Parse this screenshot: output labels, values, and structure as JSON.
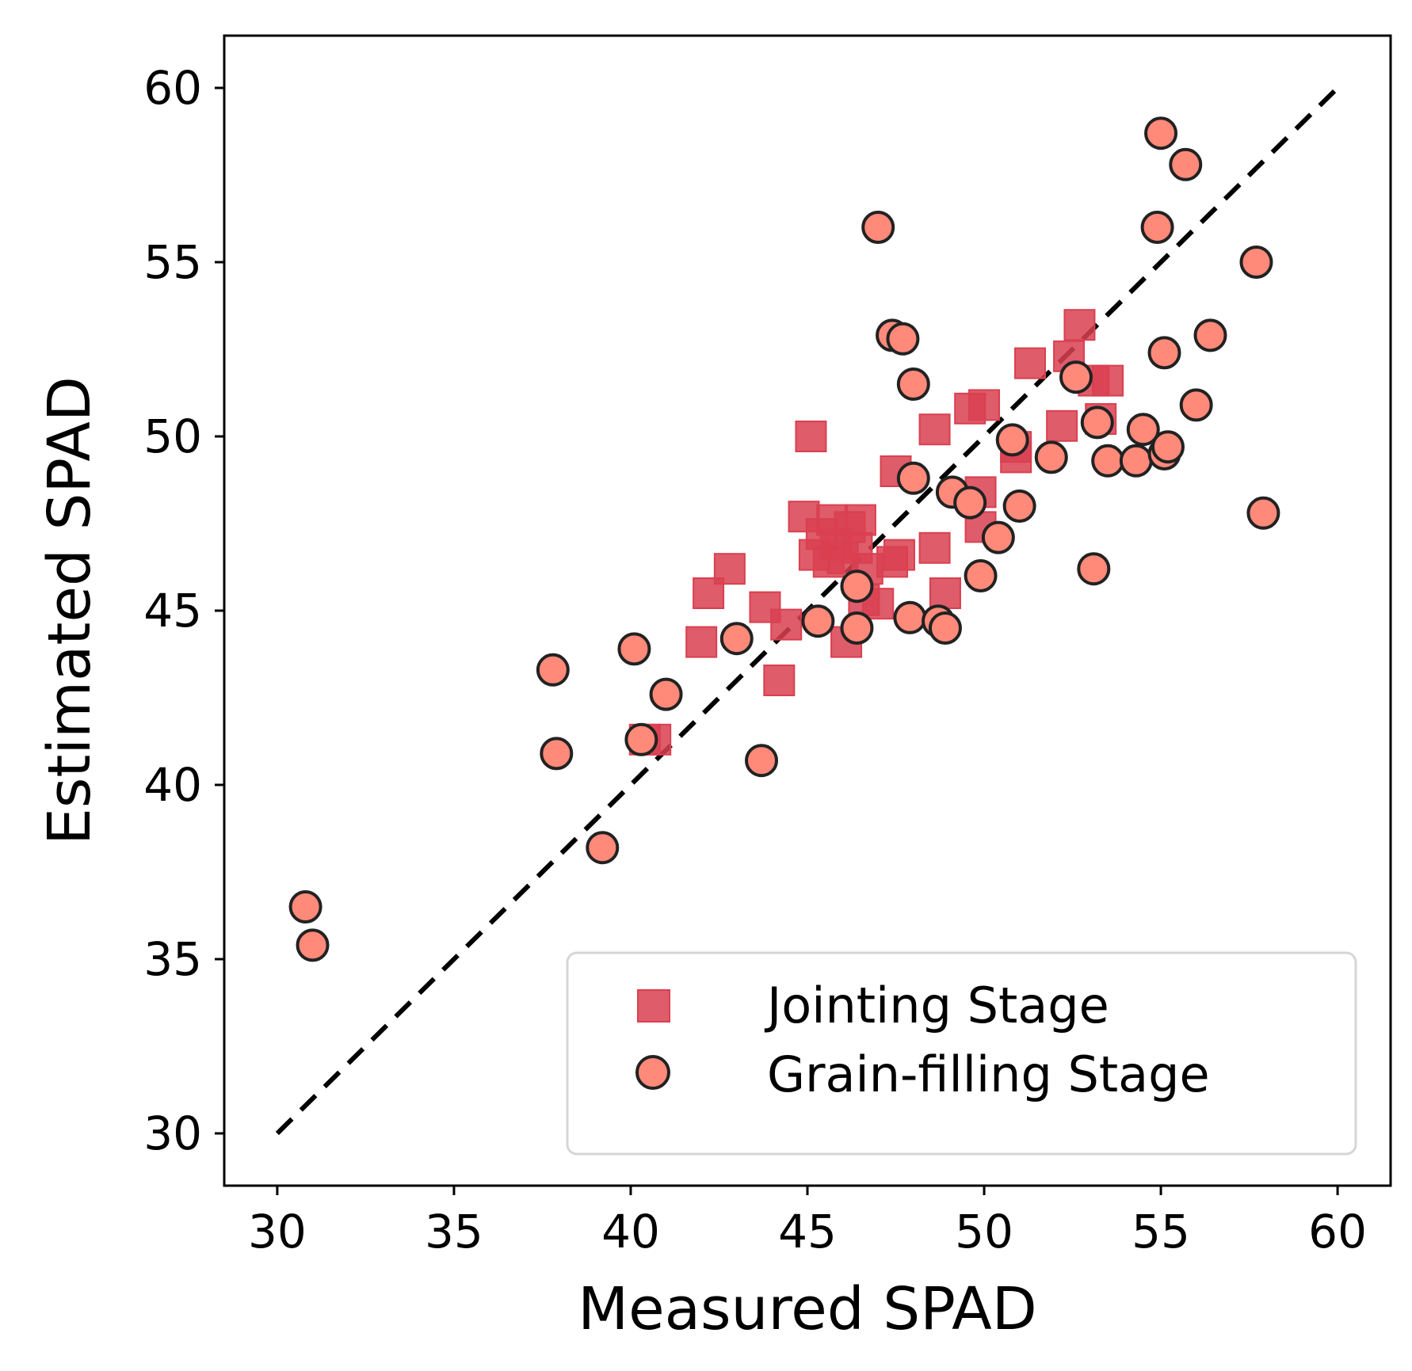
{
  "chart_data": {
    "type": "scatter",
    "title": "",
    "xlabel": "Measured SPAD",
    "ylabel": "Estimated SPAD",
    "xlim": [
      28.5,
      61.5
    ],
    "ylim": [
      28.5,
      61.5
    ],
    "xticks": [
      30,
      35,
      40,
      45,
      50,
      55,
      60
    ],
    "yticks": [
      30,
      35,
      40,
      45,
      50,
      55,
      60
    ],
    "grid": false,
    "legend_position": "bottom-right",
    "reference_line": {
      "style": "dashed",
      "color": "#000000",
      "from": [
        30,
        30
      ],
      "to": [
        60,
        60
      ]
    },
    "series": [
      {
        "name": "Jointing Stage",
        "marker": "square",
        "color": "#d94050",
        "points": [
          [
            40.4,
            41.3
          ],
          [
            40.7,
            41.3
          ],
          [
            42.0,
            44.1
          ],
          [
            42.2,
            45.5
          ],
          [
            42.8,
            46.2
          ],
          [
            43.8,
            45.1
          ],
          [
            44.4,
            44.6
          ],
          [
            44.2,
            43.0
          ],
          [
            44.9,
            47.7
          ],
          [
            45.1,
            50.0
          ],
          [
            45.2,
            46.6
          ],
          [
            45.4,
            47.2
          ],
          [
            45.6,
            46.4
          ],
          [
            45.7,
            47.6
          ],
          [
            45.8,
            46.9
          ],
          [
            46.0,
            46.5
          ],
          [
            46.1,
            44.1
          ],
          [
            46.2,
            47.4
          ],
          [
            46.4,
            46.8
          ],
          [
            46.5,
            47.6
          ],
          [
            46.6,
            45.3
          ],
          [
            46.7,
            46.2
          ],
          [
            47.0,
            45.2
          ],
          [
            47.4,
            46.4
          ],
          [
            47.5,
            49.0
          ],
          [
            47.6,
            46.6
          ],
          [
            48.6,
            50.2
          ],
          [
            48.6,
            46.8
          ],
          [
            48.9,
            45.5
          ],
          [
            49.6,
            50.8
          ],
          [
            49.9,
            48.4
          ],
          [
            49.9,
            47.4
          ],
          [
            50.0,
            50.9
          ],
          [
            50.9,
            49.7
          ],
          [
            50.9,
            49.4
          ],
          [
            51.3,
            52.1
          ],
          [
            52.2,
            50.3
          ],
          [
            52.4,
            52.3
          ],
          [
            52.7,
            53.2
          ],
          [
            53.1,
            51.6
          ],
          [
            53.3,
            50.5
          ],
          [
            53.5,
            51.6
          ]
        ]
      },
      {
        "name": "Grain-filling Stage",
        "marker": "circle",
        "color": "#ff8a7a",
        "points": [
          [
            30.8,
            36.5
          ],
          [
            31.0,
            35.4
          ],
          [
            37.8,
            43.3
          ],
          [
            37.9,
            40.9
          ],
          [
            39.2,
            38.2
          ],
          [
            40.1,
            43.9
          ],
          [
            40.3,
            41.3
          ],
          [
            41.0,
            42.6
          ],
          [
            43.0,
            44.2
          ],
          [
            43.7,
            40.7
          ],
          [
            45.3,
            44.7
          ],
          [
            46.4,
            44.5
          ],
          [
            46.4,
            45.7
          ],
          [
            47.0,
            56.0
          ],
          [
            47.4,
            52.9
          ],
          [
            47.7,
            52.8
          ],
          [
            47.9,
            44.8
          ],
          [
            48.0,
            51.5
          ],
          [
            48.0,
            48.8
          ],
          [
            48.7,
            44.7
          ],
          [
            48.9,
            44.5
          ],
          [
            49.1,
            48.4
          ],
          [
            49.6,
            48.1
          ],
          [
            49.9,
            46.0
          ],
          [
            50.4,
            47.1
          ],
          [
            50.8,
            49.9
          ],
          [
            51.0,
            48.0
          ],
          [
            51.9,
            49.4
          ],
          [
            52.6,
            51.7
          ],
          [
            53.1,
            46.2
          ],
          [
            53.2,
            50.4
          ],
          [
            53.5,
            49.3
          ],
          [
            54.3,
            49.3
          ],
          [
            54.5,
            50.2
          ],
          [
            54.9,
            56.0
          ],
          [
            55.0,
            58.7
          ],
          [
            55.1,
            52.4
          ],
          [
            55.1,
            49.5
          ],
          [
            55.2,
            49.7
          ],
          [
            55.7,
            57.8
          ],
          [
            56.0,
            50.9
          ],
          [
            56.4,
            52.9
          ],
          [
            57.7,
            55.0
          ],
          [
            57.9,
            47.8
          ]
        ]
      }
    ]
  }
}
